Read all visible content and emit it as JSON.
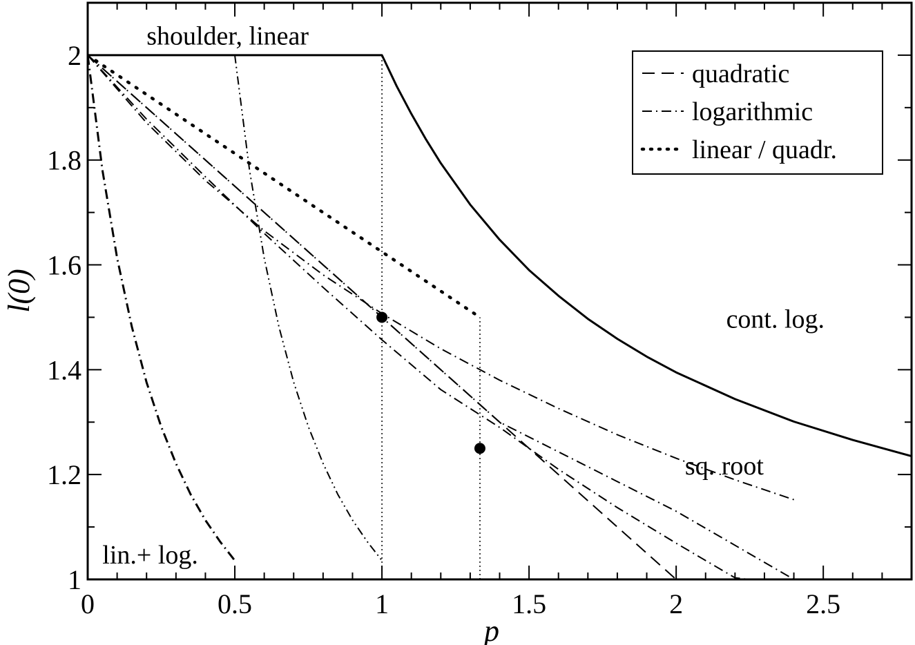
{
  "chart_data": {
    "type": "line",
    "xlabel": "p",
    "ylabel": "l(0)",
    "xlim": [
      0,
      2.8
    ],
    "ylim": [
      1,
      2.1
    ],
    "grid": false,
    "legend": {
      "placement": "top-right",
      "entries": [
        {
          "label": "quadratic",
          "style": "dashed"
        },
        {
          "label": "logarithmic",
          "style": "dashdot"
        },
        {
          "label": "linear / quadr.",
          "style": "dotted"
        }
      ]
    },
    "x_ticks": [
      {
        "value": 0,
        "label": "0"
      },
      {
        "value": 0.5,
        "label": "0.5"
      },
      {
        "value": 1,
        "label": "1"
      },
      {
        "value": 1.5,
        "label": "1.5"
      },
      {
        "value": 2,
        "label": "2"
      },
      {
        "value": 2.5,
        "label": "2.5"
      }
    ],
    "y_ticks": [
      {
        "value": 1,
        "label": "1"
      },
      {
        "value": 1.2,
        "label": "1.2"
      },
      {
        "value": 1.4,
        "label": "1.4"
      },
      {
        "value": 1.6,
        "label": "1.6"
      },
      {
        "value": 1.8,
        "label": "1.8"
      },
      {
        "value": 2,
        "label": "2"
      }
    ],
    "series": [
      {
        "id": "cont-log",
        "style": "solid",
        "width": 3,
        "x": [
          0,
          1.0,
          1.05,
          1.1,
          1.15,
          1.2,
          1.3,
          1.4,
          1.5,
          1.6,
          1.7,
          1.8,
          1.9,
          2.0,
          2.2,
          2.4,
          2.6,
          2.8
        ],
        "y": [
          2,
          2,
          1.941,
          1.888,
          1.839,
          1.794,
          1.715,
          1.648,
          1.59,
          1.541,
          1.497,
          1.459,
          1.425,
          1.395,
          1.344,
          1.301,
          1.266,
          1.235
        ]
      },
      {
        "id": "shoulder-linear",
        "style": "dashdotdot",
        "width": 2,
        "x": [
          0.5,
          0.55,
          0.6,
          0.65,
          0.7,
          0.75,
          0.8,
          0.85,
          0.9,
          0.95,
          1.0
        ],
        "y": [
          2,
          1.781,
          1.613,
          1.482,
          1.376,
          1.291,
          1.221,
          1.162,
          1.113,
          1.072,
          1.036
        ]
      },
      {
        "id": "lin-log",
        "style": "dashdot",
        "width": 3,
        "x": [
          0,
          0.05,
          0.1,
          0.15,
          0.2,
          0.25,
          0.3,
          0.35,
          0.4,
          0.45,
          0.5
        ],
        "y": [
          2,
          1.781,
          1.613,
          1.482,
          1.376,
          1.291,
          1.221,
          1.162,
          1.113,
          1.072,
          1.036
        ]
      },
      {
        "id": "quadratic",
        "style": "dashed",
        "width": 2,
        "x": [
          0,
          2
        ],
        "y": [
          2,
          1
        ]
      },
      {
        "id": "logarithmic",
        "style": "dashdot",
        "width": 2,
        "x": [
          0,
          0.2,
          0.4,
          0.6,
          0.8,
          1.0,
          1.2,
          1.4,
          1.6,
          1.8,
          2.0,
          2.2,
          2.4
        ],
        "y": [
          2,
          1.871,
          1.761,
          1.665,
          1.581,
          1.507,
          1.44,
          1.38,
          1.326,
          1.276,
          1.231,
          1.19,
          1.152
        ]
      },
      {
        "id": "sq-root",
        "style": "dashdot",
        "width": 2,
        "x": [
          0,
          0.2,
          0.4,
          0.6,
          0.8,
          1.0,
          1.2,
          1.4,
          1.6,
          1.8,
          2.0,
          2.2,
          2.4
        ],
        "y": [
          2,
          1.878,
          1.768,
          1.66,
          1.557,
          1.457,
          1.362,
          1.29,
          1.21,
          1.137,
          1.069,
          1.003,
          0.99
        ]
      },
      {
        "id": "linear-quadr",
        "style": "dotted",
        "width": 4.5,
        "x": [
          0,
          1.333
        ],
        "y": [
          2,
          1.5
        ]
      },
      {
        "id": "dashdot-line",
        "style": "dashdot",
        "width": 2,
        "x": [
          0,
          1.4,
          2.0,
          2.4
        ],
        "y": [
          2,
          1.3,
          1.13,
          1.0
        ]
      },
      {
        "id": "vline-1",
        "style": "thin-dotted",
        "width": 1.5,
        "x": [
          1,
          1
        ],
        "y": [
          1,
          2
        ]
      },
      {
        "id": "vline-1333",
        "style": "thin-dotted",
        "width": 1.5,
        "x": [
          1.333,
          1.333
        ],
        "y": [
          1,
          1.5
        ]
      },
      {
        "id": "baseline-segment",
        "style": "solid",
        "width": 3,
        "x": [
          0.5,
          1.0
        ],
        "y": [
          1,
          1
        ]
      }
    ],
    "points": [
      {
        "x": 1.0,
        "y": 1.5
      },
      {
        "x": 1.333,
        "y": 1.25
      }
    ],
    "annotations": [
      {
        "text": "shoulder, linear",
        "x": 0.2,
        "y": 2.02
      },
      {
        "text": "cont. log.",
        "x": 2.17,
        "y": 1.48
      },
      {
        "text": "sq. root",
        "x": 2.03,
        "y": 1.2
      },
      {
        "text": "lin.+ log.",
        "x": 0.05,
        "y": 1.03
      }
    ]
  }
}
